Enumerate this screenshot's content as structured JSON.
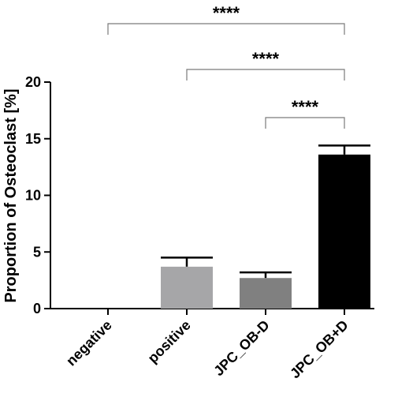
{
  "chart_data": {
    "type": "bar",
    "ylabel": "Proportion of Osteoclast [%]",
    "ylim": [
      0,
      20
    ],
    "yticks": [
      0,
      5,
      10,
      15,
      20
    ],
    "categories": [
      "negative",
      "positive",
      "JPC_OB-D",
      "JPC_OB+D"
    ],
    "values": [
      0,
      3.7,
      2.7,
      13.6
    ],
    "errors": [
      0,
      0.8,
      0.5,
      0.8
    ],
    "colors": [
      "#ffffff",
      "#a6a6a8",
      "#808080",
      "#000000"
    ],
    "significance": [
      {
        "from": 0,
        "to": 3,
        "label": "****"
      },
      {
        "from": 1,
        "to": 3,
        "label": "****"
      },
      {
        "from": 2,
        "to": 3,
        "label": "****"
      }
    ]
  }
}
